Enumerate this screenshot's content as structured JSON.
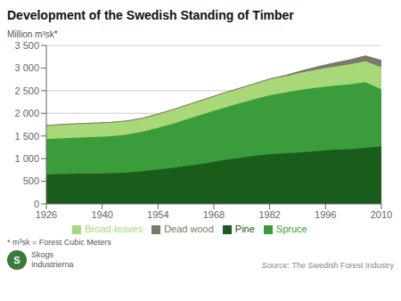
{
  "chart_data": {
    "type": "area",
    "stacked": true,
    "title": "Development of the Swedish Standing of Timber",
    "y_label": "Million m³sk*",
    "annotations": [
      "* m³sk = Forest Cubic Meters",
      "Source: The Swedish Forest Industry",
      "Skogs\nIndustrierna",
      "S"
    ],
    "x": [
      1926,
      1930,
      1934,
      1938,
      1942,
      1946,
      1950,
      1954,
      1958,
      1962,
      1966,
      1970,
      1974,
      1978,
      1982,
      1986,
      1990,
      1994,
      1998,
      2002,
      2006,
      2010
    ],
    "series": [
      {
        "name": "Pine",
        "color": "#1a5c1a",
        "values": [
          650,
          660,
          665,
          670,
          675,
          690,
          720,
          760,
          800,
          850,
          900,
          960,
          1010,
          1060,
          1100,
          1120,
          1140,
          1170,
          1200,
          1210,
          1240,
          1270
        ]
      },
      {
        "name": "Spruce",
        "color": "#3a9c3a",
        "values": [
          780,
          790,
          800,
          810,
          820,
          840,
          870,
          920,
          980,
          1040,
          1100,
          1150,
          1200,
          1250,
          1300,
          1340,
          1380,
          1400,
          1410,
          1430,
          1450,
          1260
        ]
      },
      {
        "name": "Broad-leaves",
        "color": "#a8d878",
        "values": [
          300,
          305,
          305,
          305,
          305,
          300,
          300,
          305,
          310,
          315,
          320,
          325,
          330,
          340,
          350,
          360,
          380,
          400,
          420,
          440,
          460,
          490
        ]
      },
      {
        "name": "Dead wood",
        "color": "#7a7a6a",
        "values": [
          0,
          0,
          0,
          0,
          0,
          0,
          0,
          0,
          0,
          0,
          0,
          0,
          0,
          0,
          10,
          20,
          40,
          60,
          80,
          100,
          120,
          150
        ]
      }
    ],
    "xlim": [
      1926,
      2010
    ],
    "xticks": [
      1926,
      1940,
      1954,
      1968,
      1982,
      1996,
      2010
    ],
    "ylim": [
      0,
      3500
    ],
    "yticks": [
      0,
      500,
      {
        "value": 1000,
        "label": "1 000"
      },
      {
        "value": 1500,
        "label": "1 500"
      },
      {
        "value": 2000,
        "label": "2 000"
      },
      {
        "value": 2500,
        "label": "2 500"
      },
      {
        "value": 3000,
        "label": "3 000"
      },
      {
        "value": 3500,
        "label": "3 500"
      }
    ],
    "grid": "y",
    "legend": "bottom"
  }
}
